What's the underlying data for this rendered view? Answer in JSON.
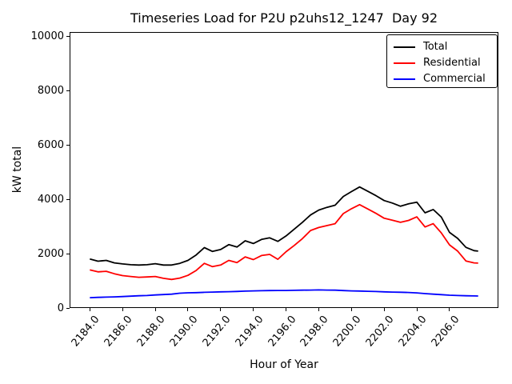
{
  "figure": {
    "background": "#ffffff",
    "accent_colors": {
      "total": "#000000",
      "residential": "#ff0000",
      "commercial": "#0000ff"
    }
  },
  "chart_data": {
    "type": "line",
    "title": "Timeseries Load for P2U p2uhs12_1247  Day 92",
    "xlabel": "Hour of Year",
    "ylabel": "kW total",
    "xlim": [
      2182.81,
      2208.94
    ],
    "ylim": [
      0,
      10000
    ],
    "yticks": [
      0,
      2000,
      4000,
      6000,
      8000,
      10000
    ],
    "xtick_labels": [
      "2184.0",
      "2186.0",
      "2188.0",
      "2190.0",
      "2192.0",
      "2194.0",
      "2196.0",
      "2198.0",
      "2200.0",
      "2202.0",
      "2204.0",
      "2206.0"
    ],
    "grid": false,
    "legend_position": "upper right",
    "x": [
      2184.0,
      2184.5,
      2185.0,
      2185.5,
      2186.0,
      2186.5,
      2187.0,
      2187.5,
      2188.0,
      2188.5,
      2189.0,
      2189.5,
      2190.0,
      2190.5,
      2191.0,
      2191.5,
      2192.0,
      2192.5,
      2193.0,
      2193.5,
      2194.0,
      2194.5,
      2195.0,
      2195.5,
      2196.0,
      2196.5,
      2197.0,
      2197.5,
      2198.0,
      2198.5,
      2199.0,
      2199.5,
      2200.0,
      2200.5,
      2201.0,
      2201.5,
      2202.0,
      2202.5,
      2203.0,
      2203.5,
      2204.0,
      2204.5,
      2205.0,
      2205.5,
      2206.0,
      2206.5,
      2207.0,
      2207.5,
      2207.75
    ],
    "series": [
      {
        "name": "Total",
        "color": "#000000",
        "values": [
          1800,
          1720,
          1750,
          1660,
          1620,
          1590,
          1580,
          1590,
          1630,
          1580,
          1580,
          1640,
          1750,
          1950,
          2220,
          2080,
          2150,
          2330,
          2240,
          2470,
          2370,
          2520,
          2580,
          2450,
          2650,
          2900,
          3150,
          3420,
          3600,
          3700,
          3780,
          4100,
          4280,
          4450,
          4290,
          4130,
          3950,
          3860,
          3740,
          3830,
          3890,
          3500,
          3620,
          3340,
          2780,
          2560,
          2230,
          2110,
          2090
        ]
      },
      {
        "name": "Residential",
        "color": "#ff0000",
        "values": [
          1400,
          1330,
          1350,
          1260,
          1190,
          1160,
          1130,
          1140,
          1160,
          1090,
          1050,
          1100,
          1200,
          1380,
          1640,
          1520,
          1580,
          1750,
          1670,
          1880,
          1780,
          1930,
          1970,
          1790,
          2070,
          2300,
          2550,
          2850,
          2960,
          3030,
          3100,
          3470,
          3650,
          3800,
          3640,
          3480,
          3300,
          3230,
          3150,
          3220,
          3350,
          2980,
          3100,
          2760,
          2320,
          2090,
          1730,
          1660,
          1650
        ]
      },
      {
        "name": "Commercial",
        "color": "#0000ff",
        "values": [
          380,
          390,
          400,
          410,
          420,
          435,
          450,
          460,
          480,
          495,
          510,
          545,
          560,
          565,
          575,
          585,
          595,
          600,
          610,
          620,
          630,
          635,
          640,
          645,
          645,
          650,
          655,
          660,
          665,
          660,
          655,
          640,
          630,
          625,
          615,
          605,
          595,
          585,
          580,
          570,
          555,
          530,
          510,
          490,
          470,
          460,
          450,
          445,
          440
        ]
      }
    ]
  }
}
